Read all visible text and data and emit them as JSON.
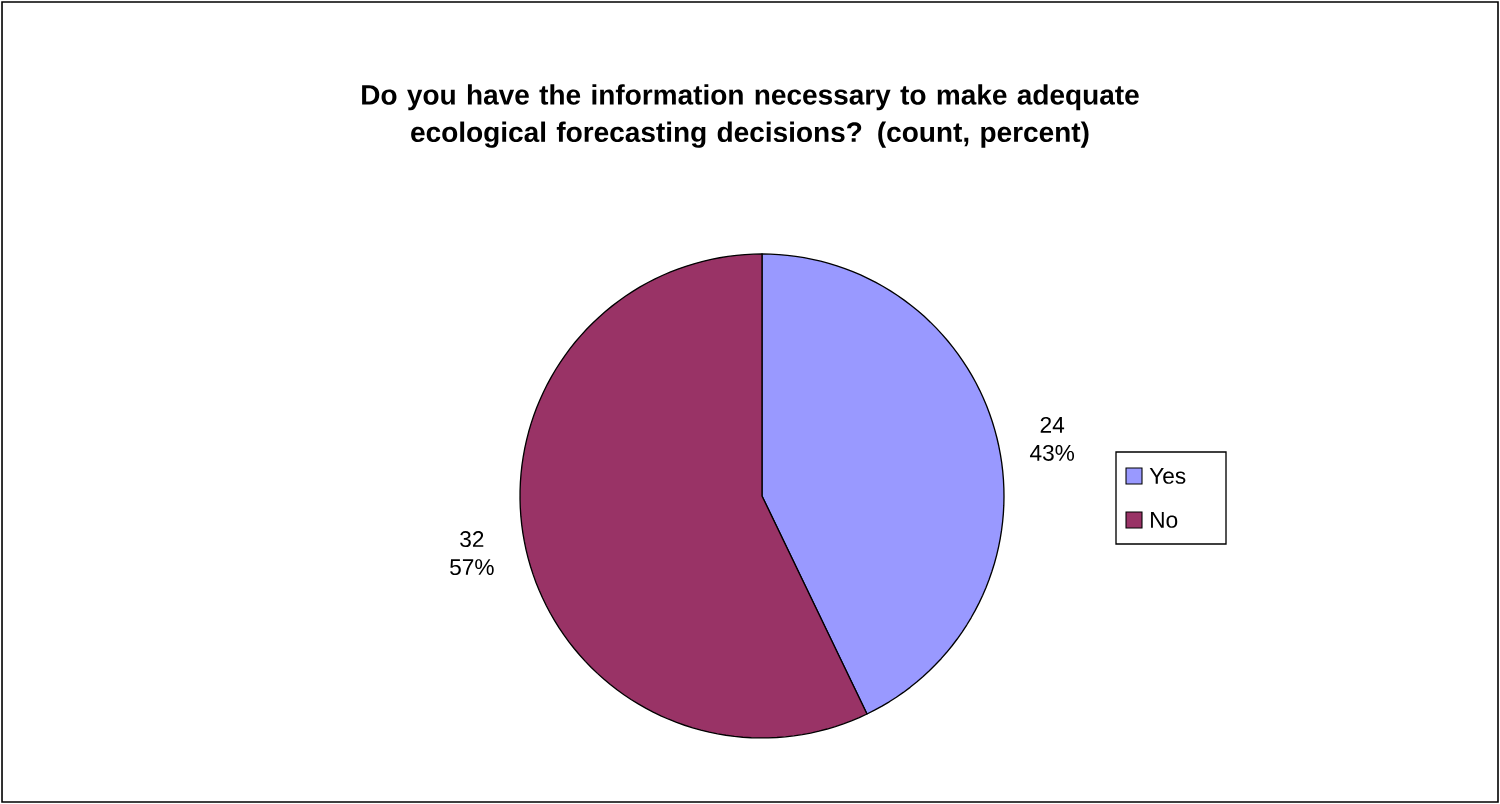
{
  "chart_data": {
    "type": "pie",
    "title": "Do you have the information necessary to make adequate ecological forecasting decisions? (count, percent)",
    "categories": [
      "Yes",
      "No"
    ],
    "values": [
      24,
      32
    ],
    "colors": [
      "#9999ff",
      "#993366"
    ],
    "value_labels": [
      "24 43%",
      "32 57%"
    ],
    "legend": "right"
  }
}
